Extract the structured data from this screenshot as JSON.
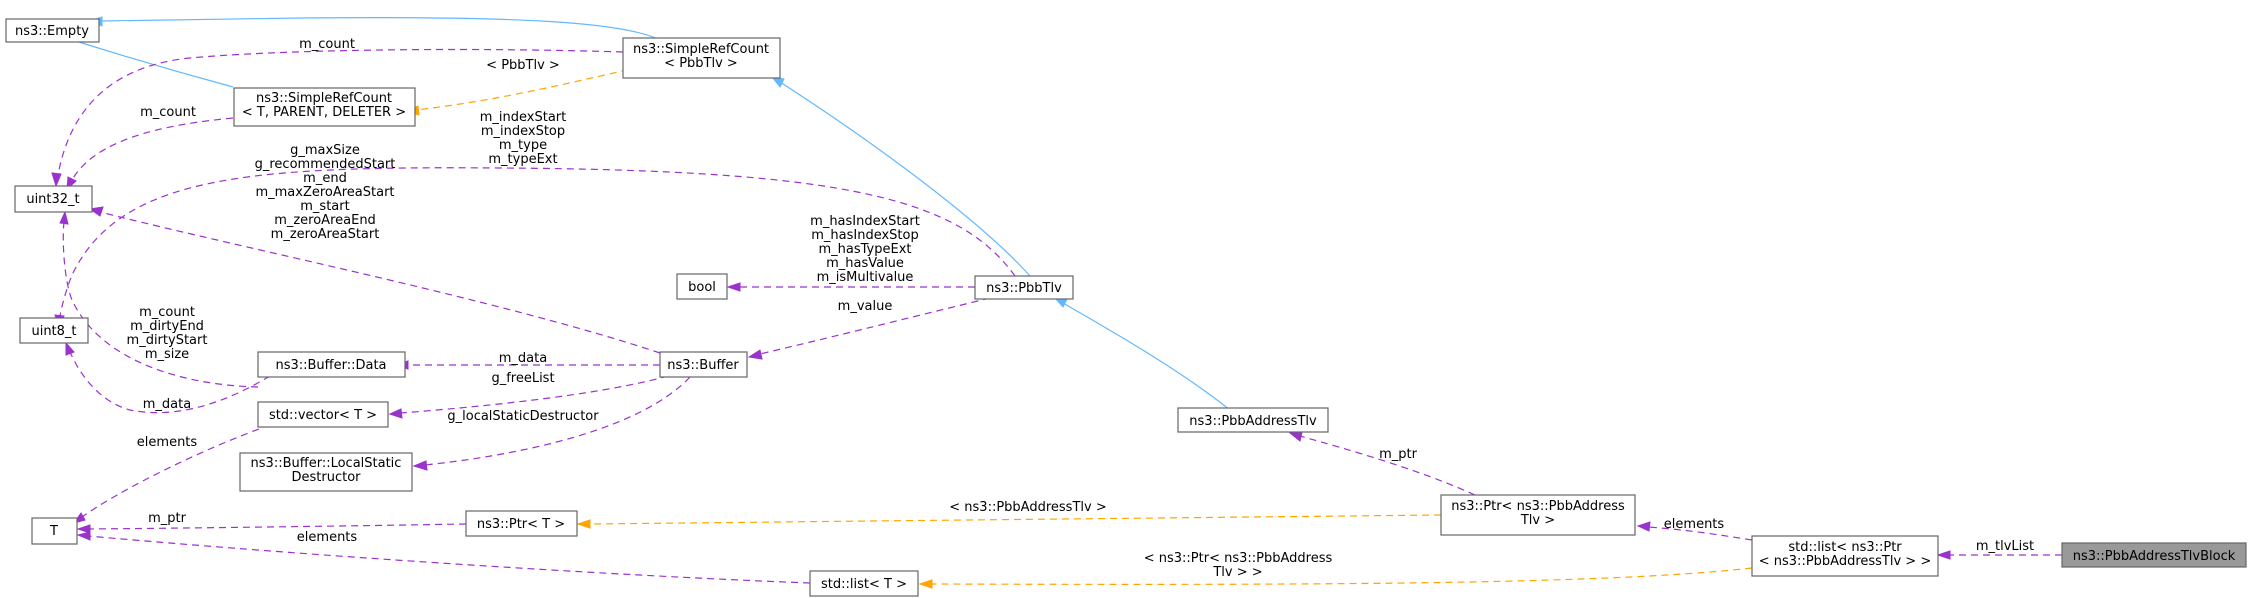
{
  "nodes": {
    "empty": [
      "ns3::Empty"
    ],
    "simplerefcount_pbb": [
      "ns3::SimpleRefCount",
      "< PbbTlv >"
    ],
    "simplerefcount_t": [
      "ns3::SimpleRefCount",
      "< T, PARENT, DELETER >"
    ],
    "uint32": [
      "uint32_t"
    ],
    "uint8": [
      "uint8_t"
    ],
    "bool": [
      "bool"
    ],
    "pbbtlv": [
      "ns3::PbbTlv"
    ],
    "buffer_data": [
      "ns3::Buffer::Data"
    ],
    "buffer": [
      "ns3::Buffer"
    ],
    "vector_t": [
      "std::vector< T >"
    ],
    "buffer_lsd": [
      "ns3::Buffer::LocalStatic",
      "Destructor"
    ],
    "t": [
      "T"
    ],
    "ptr_t": [
      "ns3::Ptr< T >"
    ],
    "list_t": [
      "std::list< T >"
    ],
    "pbbaddresstlv": [
      "ns3::PbbAddressTlv"
    ],
    "ptr_pbbaddresstlv": [
      "ns3::Ptr< ns3::PbbAddress",
      "Tlv >"
    ],
    "list_ptr": [
      "std::list< ns3::Ptr",
      "< ns3::PbbAddressTlv > >"
    ],
    "pbbaddresstlvblock": [
      "ns3::PbbAddressTlvBlock"
    ]
  },
  "edge_labels": {
    "src_m_count": [
      "m_count"
    ],
    "src_pbbtlv_tmpl": [
      "< PbbTlv >"
    ],
    "src2_m_count": [
      "m_count"
    ],
    "pbbtlv_uint8": [
      "m_indexStart",
      "m_indexStop",
      "m_type",
      "m_typeExt"
    ],
    "buffer_uint8": [
      "g_maxSize",
      "g_recommendedStart",
      "m_end",
      "m_maxZeroAreaStart",
      "m_start",
      "m_zeroAreaEnd",
      "m_zeroAreaStart"
    ],
    "pbbtlv_bool": [
      "m_hasIndexStart",
      "m_hasIndexStop",
      "m_hasTypeExt",
      "m_hasValue",
      "m_isMultivalue"
    ],
    "pbbtlv_buffer": [
      "m_value"
    ],
    "data_uint32": [
      "m_count",
      "m_dirtyEnd",
      "m_dirtyStart",
      "m_size"
    ],
    "buffer_data": [
      "m_data"
    ],
    "buffer_vector": [
      "g_freeList"
    ],
    "data_uint8": [
      "m_data"
    ],
    "buffer_lsd": [
      "g_localStaticDestructor"
    ],
    "vector_t": [
      "elements"
    ],
    "ptr_t": [
      "m_ptr"
    ],
    "list_t_t": [
      "elements"
    ],
    "addrtlv_ptr": [
      "m_ptr"
    ],
    "ptr_tmpl": [
      "< ns3::PbbAddressTlv >"
    ],
    "listptr_ptr": [
      "elements"
    ],
    "block_list": [
      "m_tlvList"
    ],
    "list_tmpl": [
      "< ns3::Ptr< ns3::PbbAddress",
      "Tlv > >"
    ]
  },
  "colors": {
    "member_edge": "#9a32cd",
    "template_edge": "#ffa500",
    "inherit_edge": "#63b8ff",
    "highlight_fill": "#999999"
  }
}
